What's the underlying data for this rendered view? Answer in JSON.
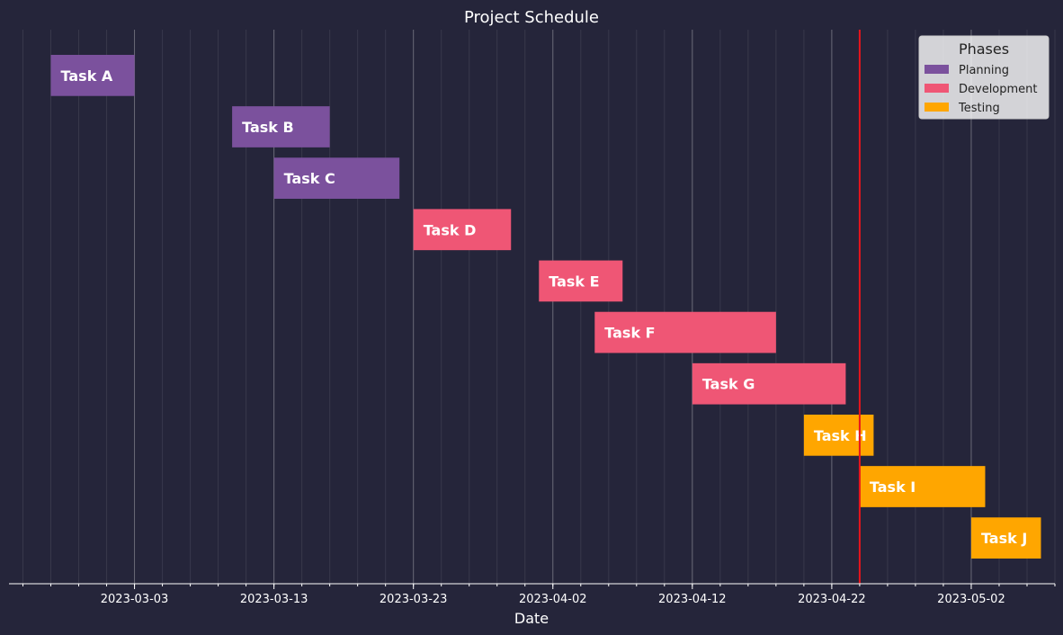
{
  "chart_data": {
    "type": "bar",
    "orientation": "horizontal-gantt",
    "title": "Project Schedule",
    "xlabel": "Date",
    "ylabel": "",
    "x_range": [
      "2023-02-22",
      "2023-05-08"
    ],
    "x_ticks": [
      "2023-03-03",
      "2023-03-13",
      "2023-03-23",
      "2023-04-02",
      "2023-04-12",
      "2023-04-22",
      "2023-05-02"
    ],
    "current_date": "2023-04-24",
    "legend": {
      "title": "Phases",
      "placement": "top-right"
    },
    "grid": "vertical",
    "phases": [
      {
        "name": "Planning",
        "color": "#7b519d"
      },
      {
        "name": "Development",
        "color": "#ef5675"
      },
      {
        "name": "Testing",
        "color": "#ffa600"
      }
    ],
    "tasks": [
      {
        "name": "Task A",
        "phase": "Planning",
        "start": "2023-02-25",
        "end": "2023-03-03"
      },
      {
        "name": "Task B",
        "phase": "Planning",
        "start": "2023-03-10",
        "end": "2023-03-17"
      },
      {
        "name": "Task C",
        "phase": "Planning",
        "start": "2023-03-13",
        "end": "2023-03-22"
      },
      {
        "name": "Task D",
        "phase": "Development",
        "start": "2023-03-23",
        "end": "2023-03-30"
      },
      {
        "name": "Task E",
        "phase": "Development",
        "start": "2023-04-01",
        "end": "2023-04-07"
      },
      {
        "name": "Task F",
        "phase": "Development",
        "start": "2023-04-05",
        "end": "2023-04-18"
      },
      {
        "name": "Task G",
        "phase": "Development",
        "start": "2023-04-12",
        "end": "2023-04-23"
      },
      {
        "name": "Task H",
        "phase": "Testing",
        "start": "2023-04-20",
        "end": "2023-04-25"
      },
      {
        "name": "Task I",
        "phase": "Testing",
        "start": "2023-04-24",
        "end": "2023-05-03"
      },
      {
        "name": "Task J",
        "phase": "Testing",
        "start": "2023-05-02",
        "end": "2023-05-07"
      }
    ]
  }
}
